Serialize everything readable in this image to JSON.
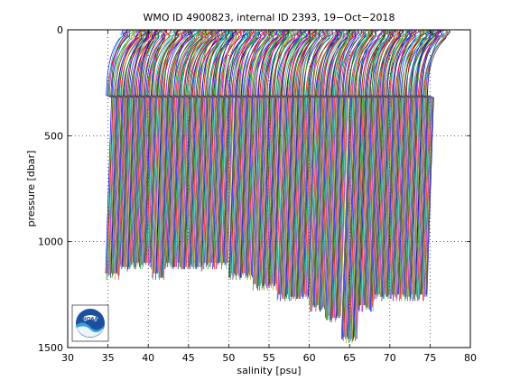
{
  "chart_data": {
    "type": "line",
    "title": "WMO ID 4900823, internal ID 2393, 19−Oct−2018",
    "xlabel": "salinity [psu]",
    "ylabel": "pressure [dbar]",
    "xlim": [
      30,
      80
    ],
    "ylim": [
      0,
      1500
    ],
    "y_reversed": true,
    "grid": true,
    "x_ticks": [
      30,
      35,
      40,
      45,
      50,
      55,
      60,
      65,
      70,
      75,
      80
    ],
    "y_ticks": [
      0,
      500,
      1000,
      1500
    ],
    "x_tick_labels": [
      "30",
      "35",
      "40",
      "45",
      "50",
      "55",
      "60",
      "65",
      "70",
      "75",
      "80"
    ],
    "y_tick_labels": [
      "0",
      "500",
      "1000",
      "1500"
    ],
    "series_colors": [
      "#0000ff",
      "#00a000",
      "#ff0000",
      "#00c0c0",
      "#c000c0",
      "#a0a000",
      "#303030"
    ],
    "profile_offset_psu": 0.1,
    "profile_count": 400,
    "profiles_start_salinity": 34.7,
    "profiles_end_salinity": 74.6,
    "deep_pressure_groups": [
      {
        "from": 34.7,
        "to": 36.5,
        "max_pressure": 1150
      },
      {
        "from": 36.5,
        "to": 40.5,
        "max_pressure": 1100
      },
      {
        "from": 40.5,
        "to": 42.0,
        "max_pressure": 1150
      },
      {
        "from": 42.0,
        "to": 50.0,
        "max_pressure": 1100
      },
      {
        "from": 50.0,
        "to": 53.0,
        "max_pressure": 1150
      },
      {
        "from": 53.0,
        "to": 56.0,
        "max_pressure": 1200
      },
      {
        "from": 56.0,
        "to": 60.0,
        "max_pressure": 1250
      },
      {
        "from": 60.0,
        "to": 62.0,
        "max_pressure": 1300
      },
      {
        "from": 62.0,
        "to": 64.0,
        "max_pressure": 1350
      },
      {
        "from": 64.0,
        "to": 66.0,
        "max_pressure": 1450
      },
      {
        "from": 66.0,
        "to": 68.0,
        "max_pressure": 1300
      },
      {
        "from": 68.0,
        "to": 75.0,
        "max_pressure": 1250
      }
    ],
    "logo": "NOAA"
  }
}
